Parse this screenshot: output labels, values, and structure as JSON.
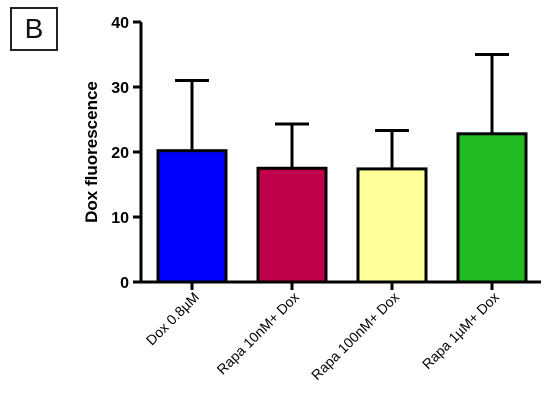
{
  "panel_label": "B",
  "chart_data": {
    "type": "bar",
    "categories": [
      "Dox 0.8µM",
      "Rapa 10nM+ Dox",
      "Rapa 100nM+ Dox",
      "Rapa 1µM+ Dox"
    ],
    "values": [
      20.2,
      17.5,
      17.4,
      22.8
    ],
    "error_upper": [
      31,
      24.3,
      23.3,
      35
    ],
    "ylabel": "Dox fluorescence",
    "xlabel": "",
    "ylim": [
      0,
      40
    ],
    "yticks": [
      0,
      10,
      20,
      30,
      40
    ],
    "grid": false,
    "colors": [
      "#0000ff",
      "#c0004a",
      "#ffff99",
      "#22bb22"
    ],
    "edge_color": "#000000"
  }
}
